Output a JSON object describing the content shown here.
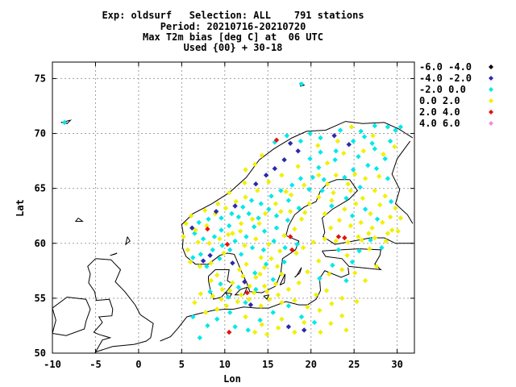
{
  "title_lines": [
    "Exp: oldsurf   Selection: ALL    791 stations",
    "Period: 20210716-20210720",
    "Max T2m bias [deg C] at  06 UTC",
    "Used {00} + 30-18"
  ],
  "chart_data": {
    "type": "scatter",
    "xlabel": "Lon",
    "ylabel": "Lat",
    "xlim": [
      -10,
      32
    ],
    "ylim": [
      50,
      76.5
    ],
    "xticks": [
      -10,
      -5,
      0,
      5,
      10,
      15,
      20,
      25,
      30
    ],
    "yticks": [
      50,
      55,
      60,
      65,
      70,
      75
    ],
    "grid": true,
    "legend_position": "right",
    "legend": [
      {
        "label": "-6.0 -4.0",
        "color": "#000000"
      },
      {
        "label": "-4.0 -2.0",
        "color": "#2a2aa8"
      },
      {
        "label": "-2.0  0.0",
        "color": "#00e8e8"
      },
      {
        "label": " 0.0  2.0",
        "color": "#f0f000"
      },
      {
        "label": " 2.0  4.0",
        "color": "#e81010"
      },
      {
        "label": " 4.0  6.0",
        "color": "#e890e8"
      }
    ],
    "series": [
      {
        "bin": "-4.0 -2.0",
        "color": "#2a2aa8",
        "points": [
          [
            7.5,
            58.4
          ],
          [
            8.3,
            58.9
          ],
          [
            6.2,
            61.4
          ],
          [
            9.0,
            62.9
          ],
          [
            11.2,
            63.4
          ],
          [
            13.6,
            65.4
          ],
          [
            14.8,
            66.2
          ],
          [
            15.8,
            66.8
          ],
          [
            16.9,
            67.6
          ],
          [
            18.5,
            68.4
          ],
          [
            17.6,
            69.1
          ],
          [
            22.7,
            69.8
          ],
          [
            24.4,
            69.0
          ],
          [
            10.9,
            58.2
          ],
          [
            12.3,
            56.5
          ],
          [
            17.4,
            52.4
          ],
          [
            19.2,
            52.1
          ],
          [
            13.0,
            54.4
          ]
        ]
      },
      {
        "bin": "2.0 4.0",
        "color": "#e81010",
        "points": [
          [
            16.0,
            69.4
          ],
          [
            8.0,
            61.3
          ],
          [
            10.3,
            59.9
          ],
          [
            17.6,
            60.6
          ],
          [
            17.8,
            59.4
          ],
          [
            23.2,
            60.6
          ],
          [
            23.9,
            60.5
          ],
          [
            12.6,
            55.5
          ],
          [
            10.5,
            51.9
          ]
        ]
      },
      {
        "bin": "-2.0 0.0",
        "color": "#00e8e8",
        "points": [
          [
            -8.6,
            71.0
          ],
          [
            18.9,
            74.5
          ],
          [
            15.8,
            69.2
          ],
          [
            17.2,
            69.8
          ],
          [
            18.8,
            69.3
          ],
          [
            19.9,
            70.0
          ],
          [
            21.1,
            69.6
          ],
          [
            23.4,
            70.3
          ],
          [
            25.8,
            70.2
          ],
          [
            27.4,
            70.7
          ],
          [
            28.9,
            70.6
          ],
          [
            29.8,
            70.3
          ],
          [
            26.2,
            69.7
          ],
          [
            27.1,
            69.1
          ],
          [
            24.9,
            69.3
          ],
          [
            22.9,
            68.4
          ],
          [
            21.1,
            68.3
          ],
          [
            19.9,
            67.7
          ],
          [
            20.9,
            66.9
          ],
          [
            22.8,
            67.6
          ],
          [
            25.5,
            67.9
          ],
          [
            27.4,
            68.6
          ],
          [
            29.2,
            69.3
          ],
          [
            28.6,
            67.7
          ],
          [
            27.6,
            66.8
          ],
          [
            26.6,
            67.1
          ],
          [
            24.9,
            66.7
          ],
          [
            23.9,
            66.0
          ],
          [
            21.5,
            65.8
          ],
          [
            20.2,
            66.0
          ],
          [
            18.8,
            65.9
          ],
          [
            17.8,
            65.3
          ],
          [
            16.5,
            64.8
          ],
          [
            15.4,
            64.3
          ],
          [
            14.2,
            63.6
          ],
          [
            13.1,
            63.9
          ],
          [
            12.1,
            63.3
          ],
          [
            10.8,
            62.7
          ],
          [
            9.6,
            62.3
          ],
          [
            8.1,
            62.2
          ],
          [
            7.0,
            61.9
          ],
          [
            6.5,
            60.9
          ],
          [
            7.5,
            60.4
          ],
          [
            8.8,
            60.6
          ],
          [
            9.6,
            61.2
          ],
          [
            10.5,
            61.6
          ],
          [
            11.6,
            62.4
          ],
          [
            12.8,
            62.7
          ],
          [
            13.9,
            62.3
          ],
          [
            15.1,
            63.1
          ],
          [
            16.0,
            62.5
          ],
          [
            17.3,
            62.1
          ],
          [
            18.6,
            63.2
          ],
          [
            17.4,
            63.9
          ],
          [
            16.0,
            61.4
          ],
          [
            14.6,
            61.1
          ],
          [
            13.4,
            61.5
          ],
          [
            12.5,
            60.6
          ],
          [
            11.2,
            60.2
          ],
          [
            9.7,
            59.8
          ],
          [
            8.6,
            59.4
          ],
          [
            7.2,
            59.0
          ],
          [
            6.3,
            58.7
          ],
          [
            7.9,
            57.9
          ],
          [
            9.4,
            58.6
          ],
          [
            10.6,
            59.4
          ],
          [
            11.9,
            59.0
          ],
          [
            13.2,
            59.6
          ],
          [
            14.5,
            59.4
          ],
          [
            15.7,
            60.2
          ],
          [
            17.0,
            59.6
          ],
          [
            18.4,
            59.9
          ],
          [
            14.8,
            58.1
          ],
          [
            13.5,
            57.3
          ],
          [
            15.6,
            56.7
          ],
          [
            16.9,
            58.3
          ],
          [
            24.8,
            62.5
          ],
          [
            26.3,
            63.1
          ],
          [
            27.7,
            62.2
          ],
          [
            29.3,
            63.8
          ],
          [
            25.7,
            65.1
          ],
          [
            24.1,
            64.1
          ],
          [
            22.4,
            63.4
          ],
          [
            28.9,
            65.9
          ],
          [
            30.4,
            70.6
          ],
          [
            9.5,
            56.3
          ],
          [
            10.4,
            55.1
          ],
          [
            11.6,
            56.0
          ],
          [
            12.4,
            54.6
          ],
          [
            10.6,
            53.7
          ],
          [
            9.1,
            53.1
          ],
          [
            8.0,
            52.5
          ],
          [
            7.1,
            51.4
          ],
          [
            11.2,
            52.4
          ],
          [
            12.7,
            52.1
          ],
          [
            14.1,
            53.0
          ],
          [
            15.6,
            53.7
          ],
          [
            17.4,
            54.3
          ],
          [
            18.9,
            53.3
          ],
          [
            20.4,
            52.8
          ],
          [
            13.6,
            55.8
          ],
          [
            8.3,
            55.6
          ],
          [
            6.3,
            53.3
          ],
          [
            23.2,
            59.4
          ],
          [
            25.6,
            59.3
          ],
          [
            26.9,
            60.3
          ],
          [
            28.2,
            59.6
          ],
          [
            24.8,
            58.3
          ],
          [
            22.5,
            58.0
          ],
          [
            21.0,
            56.8
          ],
          [
            24.1,
            56.6
          ],
          [
            19.8,
            64.9
          ],
          [
            21.3,
            64.8
          ]
        ]
      },
      {
        "bin": "0.0 2.0",
        "color": "#f0f000",
        "points": [
          [
            14.3,
            68.0
          ],
          [
            12.4,
            66.7
          ],
          [
            13.5,
            67.2
          ],
          [
            12.3,
            65.5
          ],
          [
            10.5,
            64.6
          ],
          [
            9.2,
            63.6
          ],
          [
            7.7,
            63.0
          ],
          [
            6.1,
            62.5
          ],
          [
            5.5,
            61.8
          ],
          [
            5.2,
            60.6
          ],
          [
            5.7,
            59.4
          ],
          [
            6.0,
            58.3
          ],
          [
            7.1,
            57.9
          ],
          [
            8.4,
            58.2
          ],
          [
            9.9,
            59.1
          ],
          [
            10.9,
            60.9
          ],
          [
            11.9,
            61.8
          ],
          [
            13.2,
            62.2
          ],
          [
            14.7,
            62.7
          ],
          [
            15.9,
            63.6
          ],
          [
            17.6,
            62.9
          ],
          [
            18.9,
            62.2
          ],
          [
            19.8,
            63.6
          ],
          [
            20.9,
            64.2
          ],
          [
            21.9,
            65.4
          ],
          [
            22.9,
            66.2
          ],
          [
            24.3,
            65.4
          ],
          [
            26.0,
            64.1
          ],
          [
            27.4,
            64.8
          ],
          [
            28.6,
            64.3
          ],
          [
            29.8,
            63.2
          ],
          [
            30.4,
            62.3
          ],
          [
            29.4,
            61.2
          ],
          [
            28.3,
            61.9
          ],
          [
            27.1,
            61.4
          ],
          [
            25.8,
            61.9
          ],
          [
            24.6,
            61.6
          ],
          [
            23.3,
            62.1
          ],
          [
            22.3,
            61.4
          ],
          [
            21.6,
            62.7
          ],
          [
            22.4,
            63.9
          ],
          [
            23.9,
            63.1
          ],
          [
            25.2,
            63.6
          ],
          [
            26.9,
            62.7
          ],
          [
            28.0,
            63.5
          ],
          [
            29.2,
            62.4
          ],
          [
            25.5,
            60.6
          ],
          [
            26.7,
            60.9
          ],
          [
            28.9,
            60.9
          ],
          [
            30.1,
            61.1
          ],
          [
            21.6,
            60.4
          ],
          [
            22.9,
            60.2
          ],
          [
            24.3,
            60.1
          ],
          [
            25.9,
            60.3
          ],
          [
            27.4,
            60.5
          ],
          [
            28.7,
            60.2
          ],
          [
            20.3,
            60.1
          ],
          [
            19.1,
            59.6
          ],
          [
            18.3,
            59.1
          ],
          [
            16.4,
            59.3
          ],
          [
            15.4,
            58.6
          ],
          [
            14.6,
            57.8
          ],
          [
            13.6,
            56.9
          ],
          [
            12.9,
            56.1
          ],
          [
            11.7,
            57.6
          ],
          [
            12.5,
            58.1
          ],
          [
            14.2,
            58.7
          ],
          [
            16.1,
            57.9
          ],
          [
            16.6,
            57.2
          ],
          [
            15.9,
            56.3
          ],
          [
            14.6,
            56.1
          ],
          [
            13.4,
            55.5
          ],
          [
            9.7,
            55.8
          ],
          [
            10.9,
            56.4
          ],
          [
            9.1,
            57.1
          ],
          [
            8.4,
            56.6
          ],
          [
            9.6,
            54.9
          ],
          [
            10.2,
            54.3
          ],
          [
            11.5,
            54.7
          ],
          [
            9.1,
            54.0
          ],
          [
            7.8,
            53.7
          ],
          [
            6.5,
            54.6
          ],
          [
            7.2,
            55.4
          ],
          [
            8.6,
            55.2
          ],
          [
            10.6,
            55.7
          ],
          [
            11.9,
            55.3
          ],
          [
            12.8,
            54.9
          ],
          [
            14.2,
            54.3
          ],
          [
            15.2,
            54.9
          ],
          [
            16.6,
            54.6
          ],
          [
            18.1,
            54.8
          ],
          [
            19.6,
            54.2
          ],
          [
            21.0,
            53.9
          ],
          [
            22.4,
            54.5
          ],
          [
            23.6,
            53.4
          ],
          [
            22.3,
            52.7
          ],
          [
            24.1,
            52.1
          ],
          [
            21.1,
            51.9
          ],
          [
            19.2,
            52.8
          ],
          [
            18.1,
            51.9
          ],
          [
            16.2,
            52.3
          ],
          [
            14.9,
            51.7
          ],
          [
            13.5,
            51.9
          ],
          [
            12.4,
            53.3
          ],
          [
            14.3,
            52.6
          ],
          [
            16.6,
            53.1
          ],
          [
            20.6,
            55.3
          ],
          [
            22.1,
            57.2
          ],
          [
            23.6,
            57.6
          ],
          [
            25.1,
            57.3
          ],
          [
            26.3,
            56.6
          ],
          [
            27.6,
            57.9
          ],
          [
            26.8,
            59.5
          ],
          [
            21.8,
            55.7
          ],
          [
            23.6,
            55.0
          ],
          [
            25.3,
            54.7
          ],
          [
            20.9,
            58.4
          ],
          [
            19.6,
            57.4
          ],
          [
            18.6,
            56.4
          ],
          [
            17.4,
            55.8
          ],
          [
            16.2,
            55.3
          ],
          [
            14.9,
            55.6
          ],
          [
            9.4,
            60.4
          ],
          [
            10.4,
            60.8
          ],
          [
            12.3,
            59.8
          ],
          [
            13.6,
            60.4
          ],
          [
            15.1,
            59.9
          ],
          [
            16.9,
            60.7
          ],
          [
            18.1,
            61.3
          ],
          [
            19.3,
            62.8
          ],
          [
            17.7,
            64.4
          ],
          [
            19.2,
            65.3
          ],
          [
            20.9,
            66.2
          ],
          [
            18.5,
            67.0
          ],
          [
            16.6,
            66.2
          ],
          [
            15.1,
            65.6
          ],
          [
            13.8,
            64.8
          ],
          [
            12.4,
            64.2
          ],
          [
            11.3,
            63.8
          ],
          [
            10.1,
            63.2
          ],
          [
            8.9,
            62.7
          ],
          [
            7.9,
            61.6
          ],
          [
            6.6,
            61.2
          ],
          [
            6.9,
            60.1
          ],
          [
            8.2,
            60.0
          ],
          [
            11.8,
            61.1
          ],
          [
            14.0,
            61.8
          ],
          [
            16.5,
            62.9
          ],
          [
            17.1,
            64.7
          ],
          [
            26.3,
            65.9
          ],
          [
            25.1,
            66.3
          ],
          [
            27.9,
            66.1
          ],
          [
            24.6,
            64.8
          ],
          [
            22.6,
            64.6
          ],
          [
            28.4,
            68.1
          ],
          [
            29.7,
            68.8
          ],
          [
            26.1,
            68.4
          ],
          [
            23.8,
            68.2
          ],
          [
            21.9,
            67.3
          ],
          [
            27.2,
            69.8
          ],
          [
            24.7,
            70.6
          ],
          [
            20.8,
            68.9
          ],
          [
            23.1,
            69.3
          ],
          [
            12.1,
            57.0
          ],
          [
            14.1,
            57.2
          ],
          [
            24.2,
            58.9
          ]
        ]
      }
    ]
  }
}
